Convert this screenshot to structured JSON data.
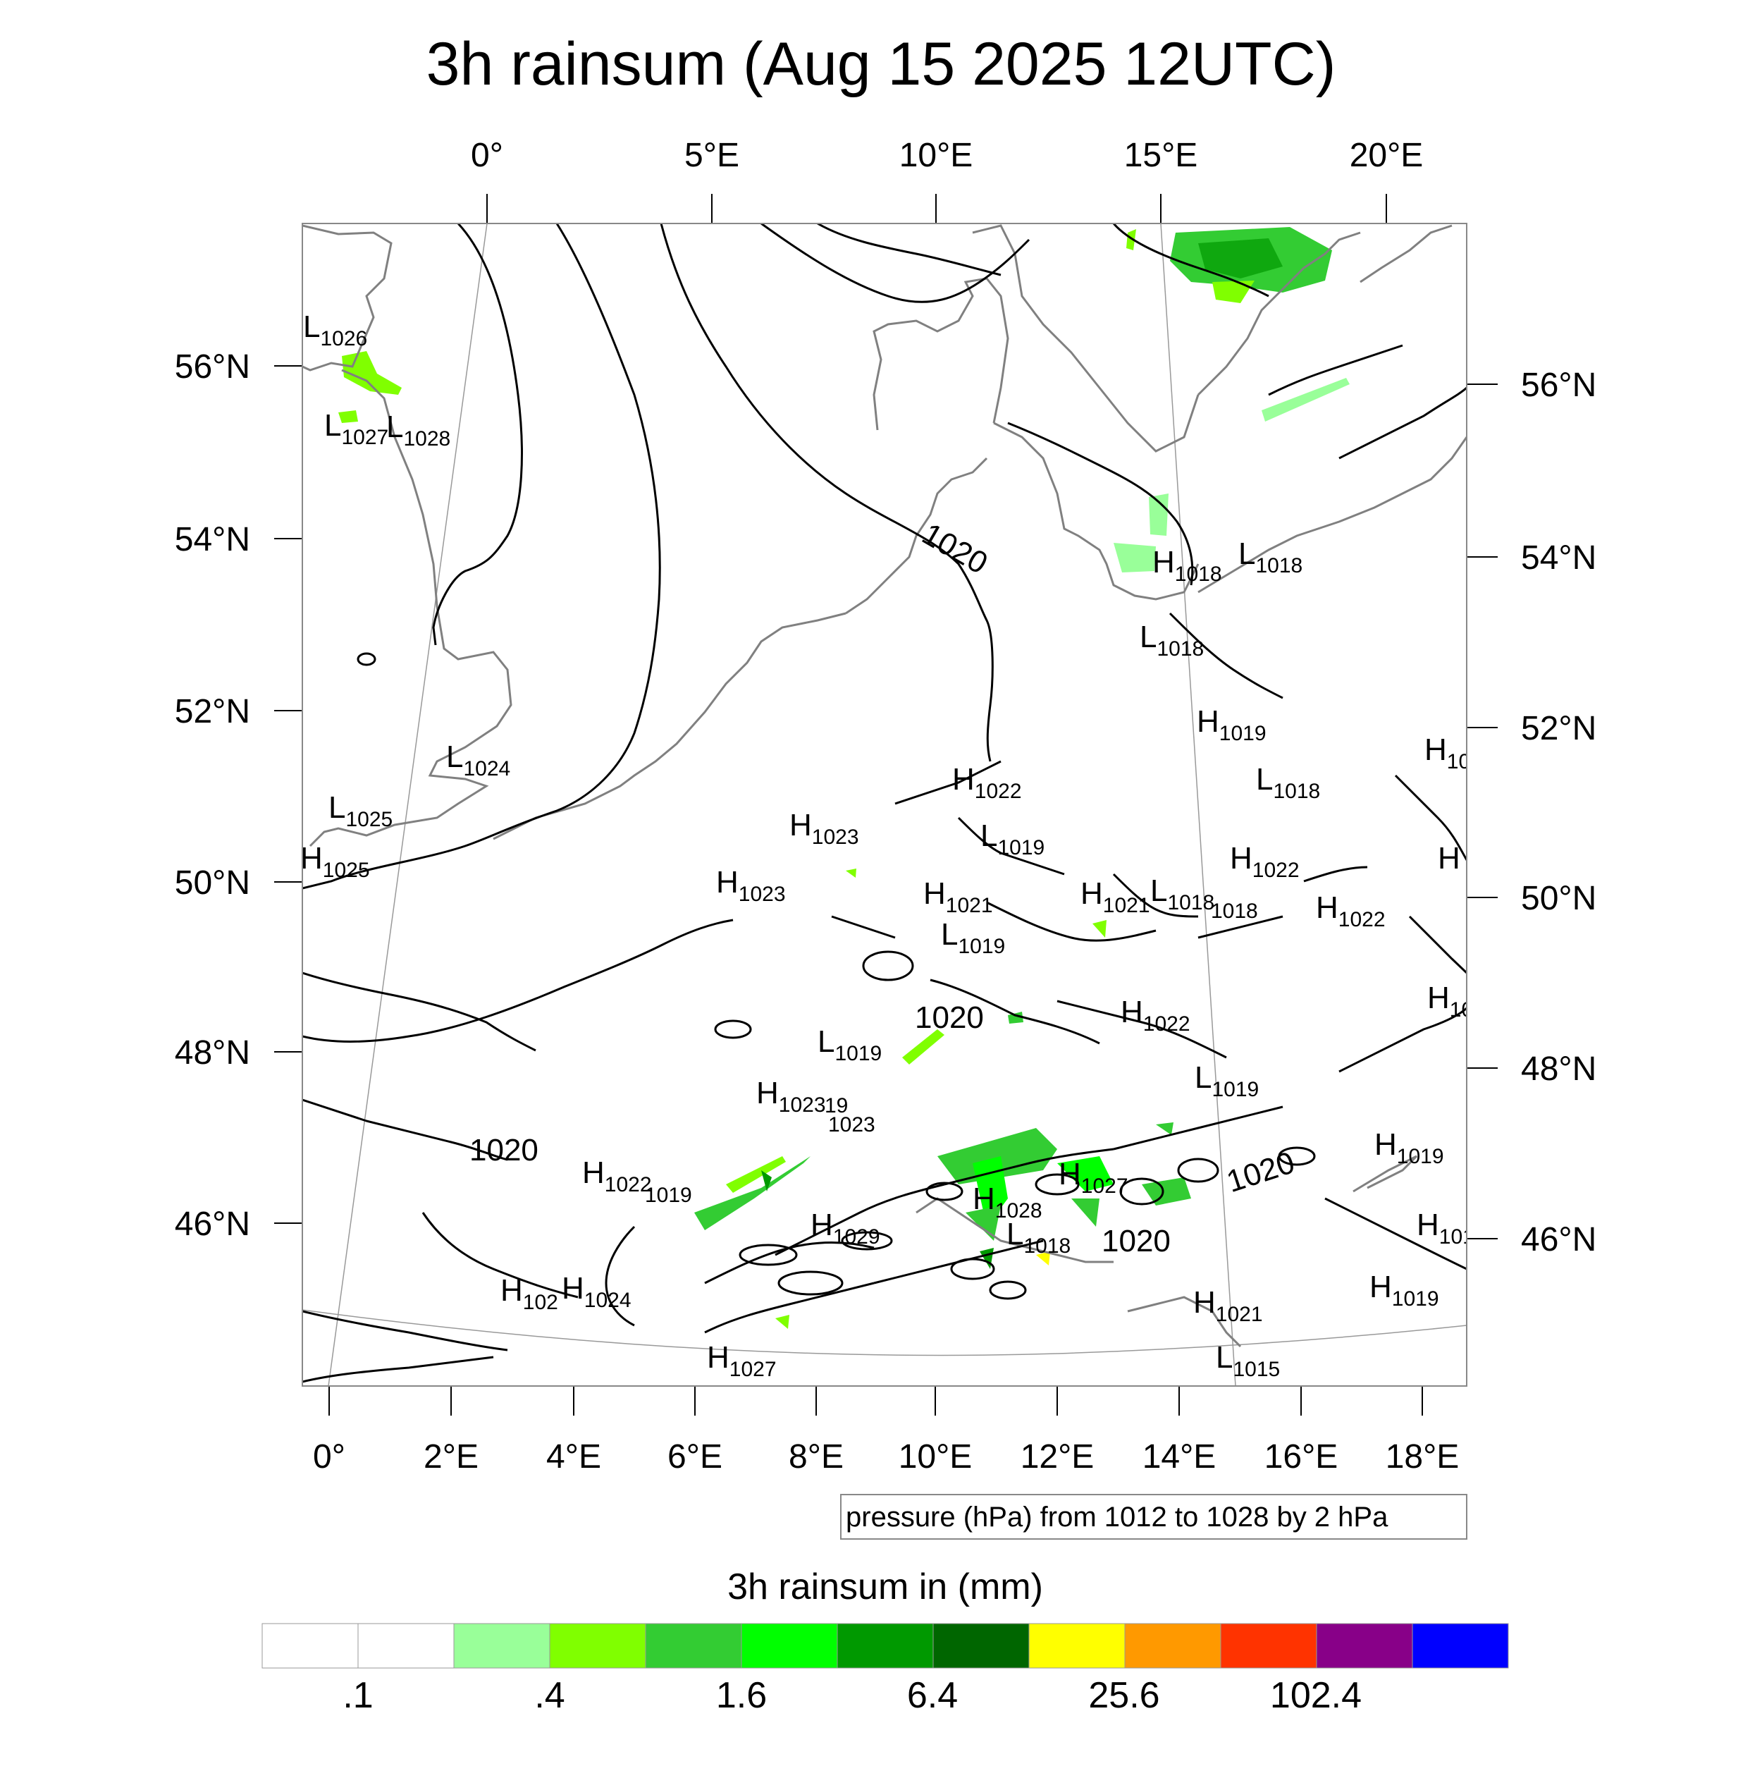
{
  "title": "3h rainsum (Aug 15 2025 12UTC)",
  "top_lon_ticks": [
    "0°",
    "5°E",
    "10°E",
    "15°E",
    "20°E"
  ],
  "bottom_lon_ticks": [
    "0°",
    "2°E",
    "4°E",
    "6°E",
    "8°E",
    "10°E",
    "12°E",
    "14°E",
    "16°E",
    "18°E"
  ],
  "left_lat_ticks": [
    "56°N",
    "54°N",
    "52°N",
    "50°N",
    "48°N",
    "46°N"
  ],
  "right_lat_ticks": [
    "56°N",
    "54°N",
    "52°N",
    "50°N",
    "48°N",
    "46°N"
  ],
  "contour_note": "pressure (hPa) from 1012 to 1028 by 2 hPa",
  "isobar_labels": [
    "1020",
    "1020",
    "1020",
    "1020",
    "1020"
  ],
  "pressure_centers": [
    {
      "type": "L",
      "value": "1026"
    },
    {
      "type": "L",
      "value": "1027"
    },
    {
      "type": "L",
      "value": "1028"
    },
    {
      "type": "L",
      "value": "1024"
    },
    {
      "type": "L",
      "value": "1025"
    },
    {
      "type": "H",
      "value": "1025"
    },
    {
      "type": "H",
      "value": "1018"
    },
    {
      "type": "L",
      "value": "1018"
    },
    {
      "type": "L",
      "value": "1018"
    },
    {
      "type": "H",
      "value": "1019"
    },
    {
      "type": "L",
      "value": "1018"
    },
    {
      "type": "H",
      "value": "10"
    },
    {
      "type": "H",
      "value": "1022"
    },
    {
      "type": "L",
      "value": "1019"
    },
    {
      "type": "H",
      "value": "1023"
    },
    {
      "type": "H",
      "value": "1023"
    },
    {
      "type": "H",
      "value": "1021"
    },
    {
      "type": "L",
      "value": "1019"
    },
    {
      "type": "H",
      "value": "1021"
    },
    {
      "type": "L",
      "value": "1018"
    },
    {
      "type": "",
      "value": "1018"
    },
    {
      "type": "H",
      "value": "1022"
    },
    {
      "type": "H",
      "value": "1022"
    },
    {
      "type": "H",
      "value": ""
    },
    {
      "type": "H",
      "value": "10"
    },
    {
      "type": "H",
      "value": "1022"
    },
    {
      "type": "L",
      "value": "1019"
    },
    {
      "type": "L",
      "value": "1019"
    },
    {
      "type": "H",
      "value": "1023"
    },
    {
      "type": "",
      "value": "19"
    },
    {
      "type": "",
      "value": "1023"
    },
    {
      "type": "H",
      "value": "1022"
    },
    {
      "type": "",
      "value": "1019"
    },
    {
      "type": "H",
      "value": "1027"
    },
    {
      "type": "H",
      "value": "1028"
    },
    {
      "type": "H",
      "value": "1029"
    },
    {
      "type": "L",
      "value": "1018"
    },
    {
      "type": "H",
      "value": "1019"
    },
    {
      "type": "H",
      "value": "101"
    },
    {
      "type": "H",
      "value": "102"
    },
    {
      "type": "H",
      "value": "1024"
    },
    {
      "type": "H",
      "value": "1019"
    },
    {
      "type": "H",
      "value": "1021"
    },
    {
      "type": "L",
      "value": "1015"
    },
    {
      "type": "H",
      "value": "1027"
    }
  ],
  "colorbar": {
    "title": "3h rainsum in (mm)",
    "colors": [
      "#ffffff",
      "#ffffff",
      "#99ff99",
      "#80ff00",
      "#33cc33",
      "#00ff00",
      "#009900",
      "#006600",
      "#ffff00",
      "#ff9900",
      "#ff3300",
      "#880088",
      "#0000ff"
    ],
    "labels": [
      ".1",
      ".4",
      "1.6",
      "6.4",
      "25.6",
      "102.4"
    ]
  },
  "colors": {
    "coastline": "#808080",
    "isobar": "#000000",
    "graticule": "#999999"
  }
}
